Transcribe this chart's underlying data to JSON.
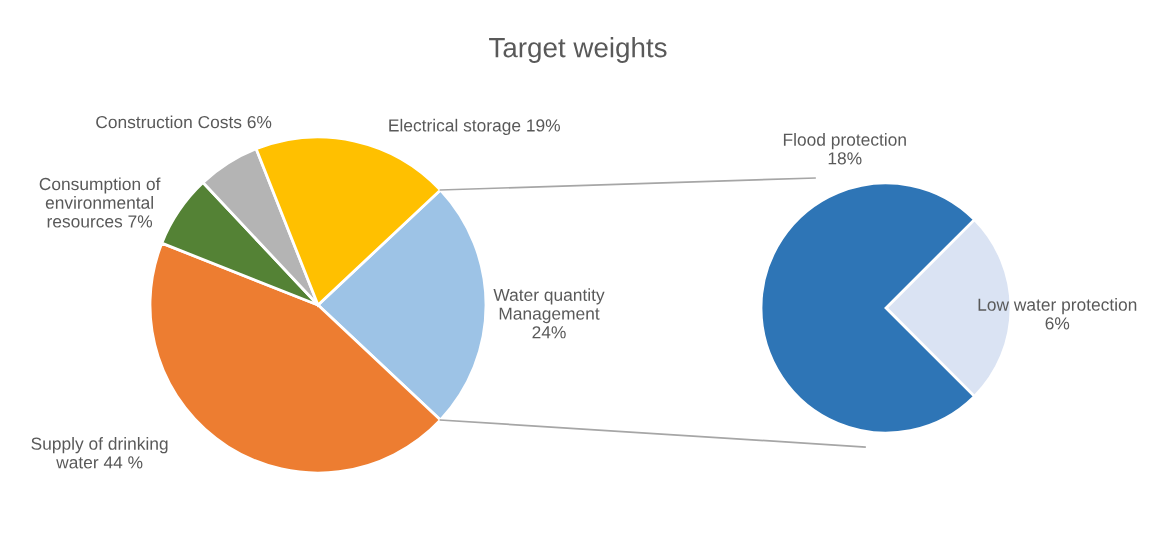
{
  "chart_data": [
    {
      "type": "pie",
      "title": "Target weights",
      "categories": [
        "Water quantity\nManagement\n24%",
        "Supply of drinking\nwater 44 %",
        "Consumption of\nenvironmental\nresources 7%",
        "Construction Costs 6%",
        "Electrical storage 19%"
      ],
      "values": [
        24,
        44,
        7,
        6,
        19
      ],
      "colors": [
        "#9dc3e6",
        "#ed7d31",
        "#548235",
        "#b4b4b4",
        "#ffc000"
      ]
    },
    {
      "type": "pie",
      "categories": [
        "Low water protection\n6%",
        "Flood protection\n18%"
      ],
      "values": [
        6,
        18
      ],
      "colors": [
        "#dae3f3",
        "#2e75b6"
      ]
    }
  ]
}
